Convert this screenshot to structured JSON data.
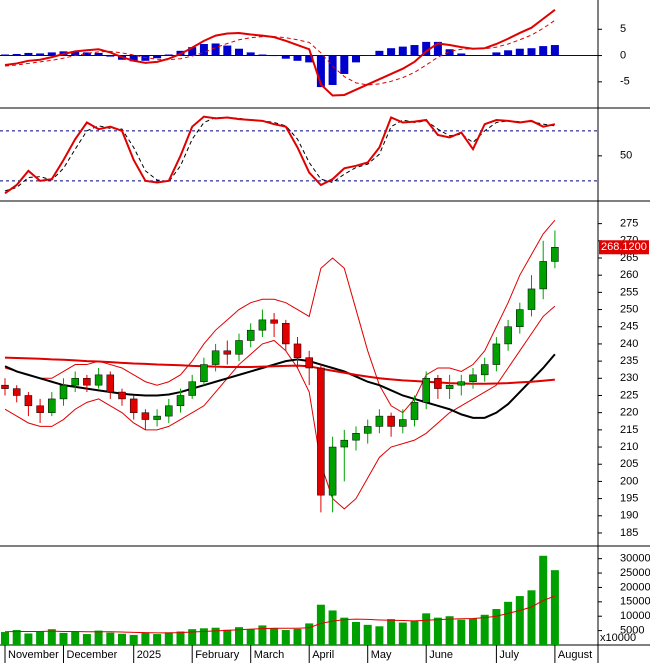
{
  "chart_data": [
    {
      "type": "macd",
      "ylim": [
        -9.6,
        10
      ],
      "yticks": [
        5,
        0,
        -5
      ],
      "zero_line": true,
      "macd": {
        "color": "#e00000",
        "values": [
          -1.8,
          -1.5,
          -1.0,
          -0.8,
          -0.3,
          0.3,
          0.8,
          1.0,
          1.2,
          0.6,
          -0.3,
          -1.0,
          -1.4,
          -1.2,
          -0.6,
          0.3,
          1.5,
          2.8,
          3.8,
          4.2,
          4.3,
          4.0,
          3.8,
          3.5,
          2.8,
          2.0,
          1.2,
          -5.5,
          -7.6,
          -7.5,
          -6.5,
          -5.5,
          -4.5,
          -3.5,
          -2.5,
          -1.2,
          0.8,
          2.3,
          2.0,
          1.6,
          1.3,
          1.4,
          2.2,
          3.2,
          4.3,
          5.3,
          7.0,
          8.7
        ]
      },
      "signal": {
        "color": "#e00000",
        "dashed": true,
        "values": [
          -2.0,
          -1.8,
          -1.5,
          -1.2,
          -0.9,
          -0.5,
          0.0,
          0.4,
          0.7,
          0.8,
          0.5,
          0.1,
          -0.4,
          -0.7,
          -0.8,
          -0.6,
          -0.1,
          0.6,
          1.5,
          2.3,
          3.0,
          3.4,
          3.6,
          3.6,
          3.4,
          3.0,
          2.5,
          0.5,
          -2.0,
          -4.0,
          -5.2,
          -5.6,
          -5.4,
          -4.9,
          -4.2,
          -3.2,
          -1.8,
          -0.3,
          0.8,
          1.2,
          1.3,
          1.3,
          1.6,
          2.2,
          3.0,
          3.9,
          5.2,
          6.7
        ]
      },
      "histogram": {
        "color": "#0000cc",
        "values": [
          0.2,
          0.3,
          0.5,
          0.4,
          0.6,
          0.8,
          0.8,
          0.6,
          0.5,
          -0.2,
          -0.8,
          -1.1,
          -1.0,
          -0.5,
          0.2,
          0.9,
          1.6,
          2.2,
          2.3,
          1.9,
          1.3,
          0.6,
          0.2,
          -0.1,
          -0.6,
          -1.0,
          -1.3,
          -6.0,
          -5.6,
          -3.5,
          -1.3,
          0.1,
          0.9,
          1.4,
          1.7,
          2.0,
          2.6,
          2.6,
          1.2,
          0.4,
          0.0,
          0.1,
          0.6,
          1.0,
          1.3,
          1.4,
          1.8,
          2.0
        ]
      }
    },
    {
      "type": "oscillator",
      "ylim": [
        -3,
        105
      ],
      "yticks": [
        50
      ],
      "levels": [
        80,
        20
      ],
      "k": {
        "color": "#e00000",
        "values": [
          5,
          15,
          32,
          20,
          22,
          45,
          70,
          90,
          82,
          85,
          80,
          45,
          20,
          18,
          20,
          50,
          85,
          97,
          95,
          96,
          94,
          93,
          92,
          88,
          85,
          60,
          30,
          15,
          22,
          35,
          38,
          42,
          60,
          96,
          90,
          91,
          93,
          75,
          72,
          78,
          58,
          88,
          93,
          92,
          90,
          92,
          85,
          88
        ]
      },
      "d": {
        "color": "#000000",
        "dashed": true,
        "values": [
          8,
          12,
          24,
          25,
          21,
          35,
          58,
          80,
          86,
          83,
          82,
          60,
          32,
          21,
          19,
          38,
          70,
          90,
          96,
          96,
          95,
          93,
          92,
          90,
          86,
          70,
          42,
          22,
          18,
          28,
          36,
          40,
          52,
          85,
          93,
          90,
          92,
          82,
          74,
          76,
          66,
          80,
          90,
          92,
          91,
          91,
          88,
          86
        ]
      }
    },
    {
      "type": "candlestick",
      "ylim": [
        181.5,
        281
      ],
      "yticks": [
        185,
        190,
        195,
        200,
        205,
        210,
        215,
        220,
        225,
        230,
        235,
        240,
        245,
        250,
        255,
        260,
        265,
        270,
        275
      ],
      "up_color": "#00a000",
      "down_color": "#e00000",
      "open": [
        228,
        227,
        225,
        222,
        220,
        224,
        228,
        230,
        228,
        231,
        226,
        224,
        220,
        218,
        219,
        222,
        225,
        229,
        234,
        238,
        237,
        241,
        244,
        247,
        246,
        240,
        236,
        233,
        196,
        210,
        212,
        214,
        216,
        219,
        216,
        218,
        223,
        230,
        227,
        228,
        229,
        231,
        234,
        240,
        245,
        250,
        256,
        264
      ],
      "high": [
        230,
        228,
        226,
        224,
        226,
        230,
        232,
        231,
        233,
        232,
        227,
        225,
        221,
        221,
        224,
        227,
        231,
        236,
        240,
        241,
        243,
        246,
        250,
        249,
        247,
        242,
        238,
        234,
        213,
        215,
        216,
        218,
        221,
        220,
        221,
        225,
        232,
        231,
        231,
        231,
        233,
        236,
        242,
        247,
        252,
        260,
        270,
        273
      ],
      "low": [
        225,
        223,
        219,
        217,
        219,
        222,
        226,
        226,
        227,
        224,
        222,
        218,
        215,
        216,
        217,
        220,
        224,
        228,
        232,
        234,
        235,
        239,
        242,
        242,
        238,
        233,
        228,
        191,
        191,
        200,
        209,
        211,
        214,
        213,
        214,
        216,
        221,
        224,
        224,
        225,
        227,
        229,
        232,
        238,
        243,
        248,
        253,
        262
      ],
      "close": [
        227,
        225,
        222,
        220,
        224,
        228,
        230,
        228,
        231,
        226,
        224,
        220,
        218,
        219,
        222,
        225,
        229,
        234,
        238,
        237,
        241,
        244,
        247,
        246,
        240,
        236,
        233,
        196,
        210,
        212,
        214,
        216,
        219,
        216,
        218,
        223,
        230,
        227,
        228,
        229,
        231,
        234,
        240,
        245,
        250,
        256,
        264,
        268.12
      ],
      "overlays": [
        {
          "color": "#e00000",
          "width": 1,
          "values": [
            233,
            232,
            231,
            230,
            230,
            232,
            234,
            234,
            235,
            234,
            233,
            231,
            229,
            228,
            229,
            231,
            235,
            240,
            244,
            247,
            250,
            252,
            253,
            253,
            252,
            250,
            248,
            262,
            265,
            262,
            250,
            238,
            228,
            222,
            220,
            224,
            231,
            233,
            233,
            232,
            234,
            238,
            245,
            252,
            260,
            266,
            272,
            276
          ]
        },
        {
          "color": "#e00000",
          "width": 1,
          "values": [
            221,
            219,
            217,
            216,
            216,
            218,
            221,
            223,
            224,
            222,
            220,
            217,
            215,
            215,
            216,
            218,
            220,
            222,
            226,
            230,
            234,
            237,
            240,
            241,
            238,
            233,
            226,
            205,
            195,
            192,
            195,
            201,
            207,
            210,
            211,
            212,
            214,
            217,
            220,
            222,
            224,
            226,
            228,
            233,
            238,
            243,
            248,
            251
          ]
        },
        {
          "color": "#000000",
          "width": 2,
          "values": [
            233.5,
            232,
            231,
            230,
            229,
            228,
            227.5,
            227,
            226.5,
            226,
            225.5,
            225.2,
            225,
            225,
            225.3,
            226,
            227,
            228,
            229,
            230,
            231,
            232,
            233,
            234,
            235,
            235.5,
            235,
            234,
            233,
            232,
            230.5,
            229,
            228,
            226.5,
            225,
            224,
            223,
            222,
            221,
            219.5,
            218.5,
            218.5,
            220,
            222.5,
            226,
            229.5,
            233,
            237
          ]
        },
        {
          "color": "#e00000",
          "width": 2,
          "values": [
            236,
            235.9,
            235.8,
            235.7,
            235.5,
            235.4,
            235.2,
            235,
            234.9,
            234.7,
            234.5,
            234.3,
            234.2,
            234,
            233.9,
            233.8,
            233.6,
            233.5,
            233.4,
            233.3,
            233.3,
            233.3,
            233.4,
            233.5,
            233.6,
            233.7,
            233.5,
            232.8,
            232.2,
            231.6,
            231,
            230.5,
            230,
            229.7,
            229.4,
            229.2,
            229,
            228.8,
            228.6,
            228.5,
            228.4,
            228.4,
            228.5,
            228.6,
            228.8,
            229,
            229.3,
            229.6
          ]
        }
      ],
      "last_price": {
        "value": 268.12,
        "label": "268.1200"
      },
      "last_price_color": "#e00000"
    },
    {
      "type": "bar",
      "ylim": [
        0,
        33700
      ],
      "yticks": [
        30000,
        25000,
        20000,
        15000,
        10000,
        5000
      ],
      "unit_label": "x10000",
      "color": "#00a000",
      "categories": [
        "November",
        null,
        null,
        null,
        null,
        "December",
        null,
        null,
        null,
        null,
        null,
        "2025",
        null,
        null,
        null,
        null,
        "February",
        null,
        null,
        null,
        null,
        "March",
        null,
        null,
        null,
        null,
        "April",
        null,
        null,
        null,
        null,
        "May",
        null,
        null,
        null,
        null,
        "June",
        null,
        null,
        null,
        null,
        null,
        "July",
        null,
        null,
        null,
        null,
        "August"
      ],
      "values": [
        4500,
        5200,
        4000,
        4800,
        5500,
        4200,
        4600,
        3800,
        5000,
        4300,
        3900,
        3500,
        4200,
        3800,
        4400,
        4700,
        5500,
        5800,
        6000,
        5300,
        6200,
        5500,
        6800,
        5900,
        5200,
        5600,
        7500,
        14000,
        12000,
        9500,
        8000,
        7000,
        6500,
        9000,
        7800,
        8500,
        11000,
        9500,
        10000,
        8800,
        9200,
        10500,
        12500,
        15000,
        17000,
        19000,
        31000,
        26000
      ],
      "average": {
        "color": "#e00000",
        "values": [
          4600,
          4700,
          4700,
          4700,
          4800,
          4700,
          4700,
          4600,
          4600,
          4600,
          4500,
          4400,
          4300,
          4200,
          4200,
          4300,
          4500,
          4700,
          4900,
          5100,
          5300,
          5500,
          5700,
          5800,
          5800,
          5800,
          6000,
          7500,
          8300,
          8800,
          9000,
          8900,
          8700,
          8600,
          8500,
          8400,
          8600,
          8800,
          9000,
          9100,
          9200,
          9500,
          10000,
          11000,
          12000,
          13200,
          15500,
          17000
        ]
      }
    }
  ]
}
